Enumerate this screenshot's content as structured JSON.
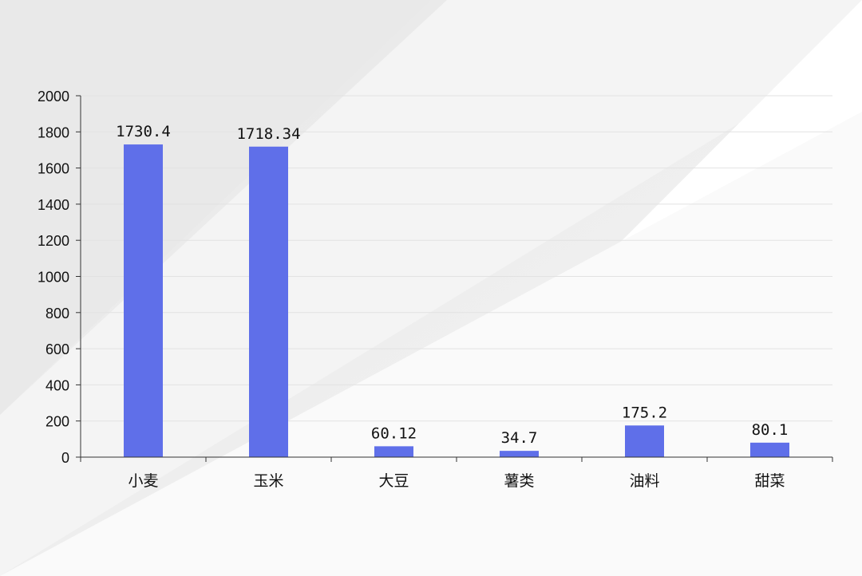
{
  "chart_data": {
    "type": "bar",
    "title": "",
    "xlabel": "",
    "ylabel": "",
    "categories": [
      "小麦",
      "玉米",
      "大豆",
      "薯类",
      "油料",
      "甜菜"
    ],
    "values": [
      1730.4,
      1718.34,
      60.12,
      34.7,
      175.2,
      80.1
    ],
    "value_labels": [
      "1730.4",
      "1718.34",
      "60.12",
      "34.7",
      "175.2",
      "80.1"
    ],
    "ylim": [
      0,
      2000
    ],
    "yticks": [
      0,
      200,
      400,
      600,
      800,
      1000,
      1200,
      1400,
      1600,
      1800,
      2000
    ],
    "grid": true,
    "legend": "none",
    "colors": {
      "bar": "#5f6fe9",
      "axis": "#333333",
      "grid": "#e2e2e2",
      "text": "#111111"
    }
  }
}
